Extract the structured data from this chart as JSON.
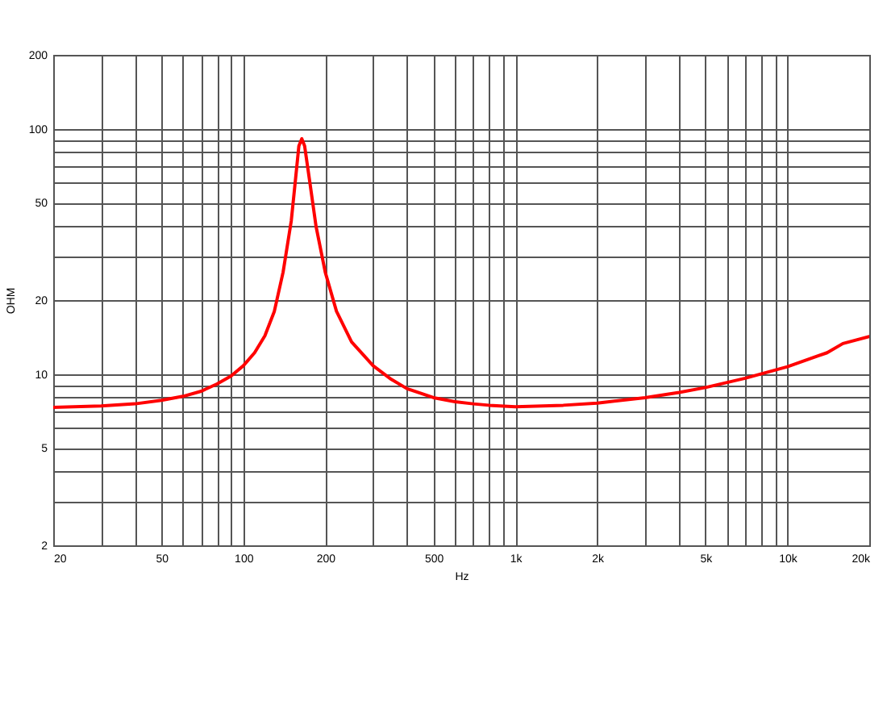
{
  "chart_data": {
    "type": "line",
    "xlabel": "Hz",
    "ylabel": "OHM",
    "x": [
      20,
      30,
      40,
      50,
      60,
      70,
      80,
      90,
      100,
      110,
      120,
      130,
      140,
      150,
      155,
      160,
      164,
      168,
      175,
      185,
      200,
      220,
      250,
      300,
      350,
      400,
      500,
      600,
      700,
      800,
      1000,
      1500,
      2000,
      3000,
      4000,
      5000,
      7000,
      10000,
      14000,
      16000,
      20000
    ],
    "series": [
      {
        "color": "#ff0000",
        "values": [
          7.3,
          7.4,
          7.55,
          7.8,
          8.1,
          8.5,
          9.1,
          9.8,
          10.8,
          12.2,
          14.3,
          18,
          26,
          42,
          60,
          85,
          91,
          85,
          62,
          40,
          26,
          18,
          13.5,
          10.8,
          9.5,
          8.7,
          8.0,
          7.7,
          7.55,
          7.45,
          7.35,
          7.45,
          7.6,
          8.0,
          8.4,
          8.8,
          9.6,
          10.7,
          12.2,
          13.3,
          14.2
        ]
      }
    ],
    "log": "xy",
    "grid": true,
    "marker": "none",
    "line_style": "solid",
    "xlim": [
      20,
      20000
    ],
    "xticks": [
      20,
      {
        "value": 30,
        "label": null
      },
      {
        "value": 40,
        "label": null
      },
      50,
      {
        "value": 60,
        "label": null
      },
      {
        "value": 70,
        "label": null
      },
      {
        "value": 80,
        "label": null
      },
      {
        "value": 90,
        "label": null
      },
      100,
      200,
      {
        "value": 300,
        "label": null
      },
      {
        "value": 400,
        "label": null
      },
      500,
      {
        "value": 600,
        "label": null
      },
      {
        "value": 700,
        "label": null
      },
      {
        "value": 800,
        "label": null
      },
      {
        "value": 900,
        "label": null
      },
      {
        "value": 1000,
        "label": "1k"
      },
      {
        "value": 2000,
        "label": "2k"
      },
      {
        "value": 3000,
        "label": null
      },
      {
        "value": 4000,
        "label": null
      },
      {
        "value": 5000,
        "label": "5k"
      },
      {
        "value": 6000,
        "label": null
      },
      {
        "value": 7000,
        "label": null
      },
      {
        "value": 8000,
        "label": null
      },
      {
        "value": 9000,
        "label": null
      },
      {
        "value": 10000,
        "label": "10k"
      },
      {
        "value": 20000,
        "label": "20k"
      }
    ],
    "ylim": [
      2,
      200
    ],
    "yticks": [
      2,
      {
        "value": 3,
        "label": null
      },
      {
        "value": 4,
        "label": null
      },
      5,
      {
        "value": 6,
        "label": null
      },
      {
        "value": 7,
        "label": null
      },
      {
        "value": 8,
        "label": null
      },
      {
        "value": 9,
        "label": null
      },
      10,
      20,
      {
        "value": 30,
        "label": null
      },
      {
        "value": 40,
        "label": null
      },
      50,
      {
        "value": 60,
        "label": null
      },
      {
        "value": 70,
        "label": null
      },
      {
        "value": 80,
        "label": null
      },
      {
        "value": 90,
        "label": null
      },
      100,
      200
    ]
  }
}
